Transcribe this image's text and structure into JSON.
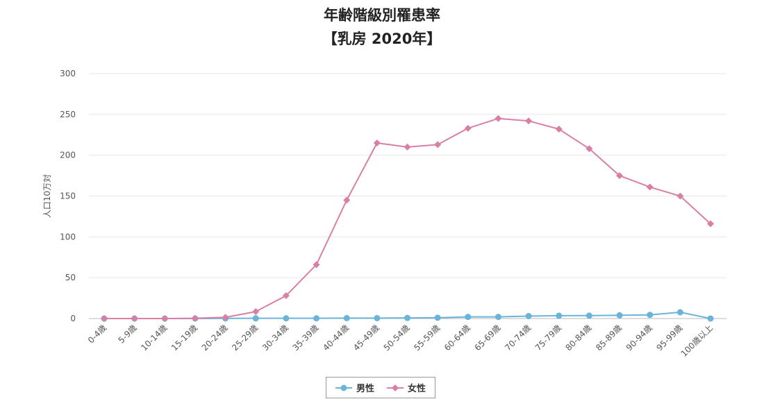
{
  "chart_data": {
    "type": "line",
    "title": "年齢階級別罹患率",
    "subtitle": "【乳房 2020年】",
    "ylabel": "人口10万対",
    "xlabel": "",
    "ylim": [
      0,
      300
    ],
    "yticks": [
      0,
      50,
      100,
      150,
      200,
      250,
      300
    ],
    "grid": true,
    "legend_position": "bottom-center",
    "categories": [
      "0-4歳",
      "5-9歳",
      "10-14歳",
      "15-19歳",
      "20-24歳",
      "25-29歳",
      "30-34歳",
      "35-39歳",
      "40-44歳",
      "45-49歳",
      "50-54歳",
      "55-59歳",
      "60-64歳",
      "65-69歳",
      "70-74歳",
      "75-79歳",
      "80-84歳",
      "85-89歳",
      "90-94歳",
      "95-99歳",
      "100歳以上"
    ],
    "series": [
      {
        "name": "男性",
        "color": "#6ab4d9",
        "marker": "circle",
        "values": [
          0,
          0,
          0,
          0,
          0.2,
          0.3,
          0.3,
          0.3,
          0.5,
          0.5,
          0.7,
          1.0,
          2.0,
          2.0,
          3.0,
          3.5,
          3.6,
          4.0,
          4.5,
          7.7,
          0
        ]
      },
      {
        "name": "女性",
        "color": "#d97fa4",
        "marker": "diamond",
        "values": [
          0,
          0,
          0,
          0.3,
          1.5,
          8.5,
          28,
          66,
          145,
          215,
          210,
          213,
          233,
          245,
          242,
          232,
          208,
          175,
          161,
          150,
          116
        ]
      }
    ]
  },
  "legend": {
    "male": "男性",
    "female": "女性"
  }
}
